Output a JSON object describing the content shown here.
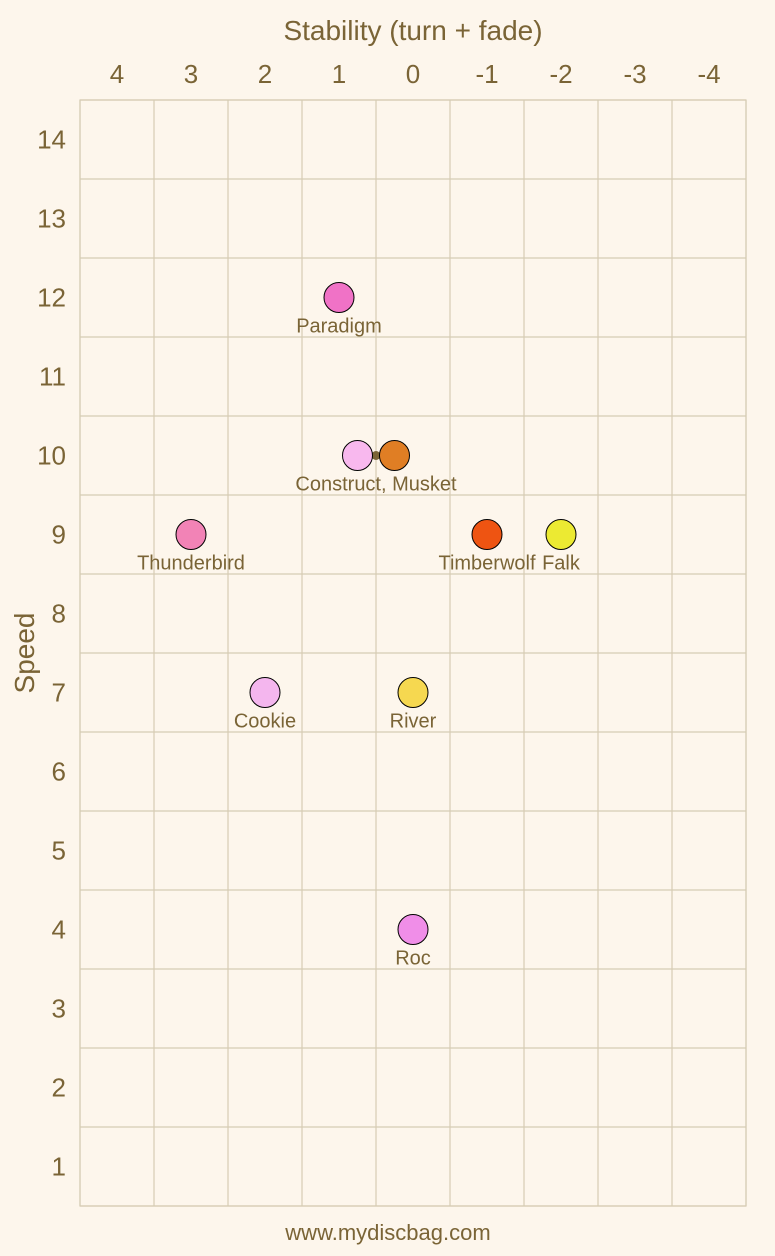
{
  "chart_data": {
    "type": "scatter",
    "title": "",
    "xlabel": "Stability (turn + fade)",
    "ylabel": "Speed",
    "xlim": [
      4.5,
      -4.5
    ],
    "ylim": [
      0.5,
      14.5
    ],
    "x_ticks": [
      4,
      3,
      2,
      1,
      0,
      -1,
      -2,
      -3,
      -4
    ],
    "y_ticks": [
      1,
      2,
      3,
      4,
      5,
      6,
      7,
      8,
      9,
      10,
      11,
      12,
      13,
      14
    ],
    "x_tick_labels": [
      "4",
      "3",
      "2",
      "1",
      "0",
      "-1",
      "-2",
      "-3",
      "-4"
    ],
    "y_tick_labels": [
      "1",
      "2",
      "3",
      "4",
      "5",
      "6",
      "7",
      "8",
      "9",
      "10",
      "11",
      "12",
      "13",
      "14"
    ],
    "grid": true,
    "x_axis_position": "top",
    "legend": "none",
    "points": [
      {
        "name": "Paradigm",
        "x": 1,
        "y": 12,
        "color": "#f072c6"
      },
      {
        "name": "Construct",
        "x": 0.75,
        "y": 10,
        "color": "#f8b8ee"
      },
      {
        "name": "Musket",
        "x": 0.25,
        "y": 10,
        "color": "#e07e24"
      },
      {
        "name": "Thunderbird",
        "x": 3,
        "y": 9,
        "color": "#f283b6"
      },
      {
        "name": "Timberwolf",
        "x": -1,
        "y": 9,
        "color": "#ee5412"
      },
      {
        "name": "Falk",
        "x": -2,
        "y": 9,
        "color": "#ecea32"
      },
      {
        "name": "Cookie",
        "x": 2,
        "y": 7,
        "color": "#f4b6ee"
      },
      {
        "name": "River",
        "x": 0,
        "y": 7,
        "color": "#f6d850"
      },
      {
        "name": "Roc",
        "x": 0,
        "y": 4,
        "color": "#f08ee8"
      }
    ],
    "group_markers": [
      {
        "x": 0.5,
        "y": 10,
        "color": "#7a6436"
      }
    ],
    "point_labels": [
      {
        "text": "Paradigm",
        "x": 1,
        "y": 12
      },
      {
        "text": "Construct, Musket",
        "x": 0.5,
        "y": 10
      },
      {
        "text": "Thunderbird",
        "x": 3,
        "y": 9
      },
      {
        "text": "Timberwolf",
        "x": -1,
        "y": 9
      },
      {
        "text": "Falk",
        "x": -2,
        "y": 9
      },
      {
        "text": "Cookie",
        "x": 2,
        "y": 7
      },
      {
        "text": "River",
        "x": 0,
        "y": 7
      },
      {
        "text": "Roc",
        "x": 0,
        "y": 4
      }
    ]
  },
  "footer": {
    "credit": "www.mydiscbag.com"
  }
}
